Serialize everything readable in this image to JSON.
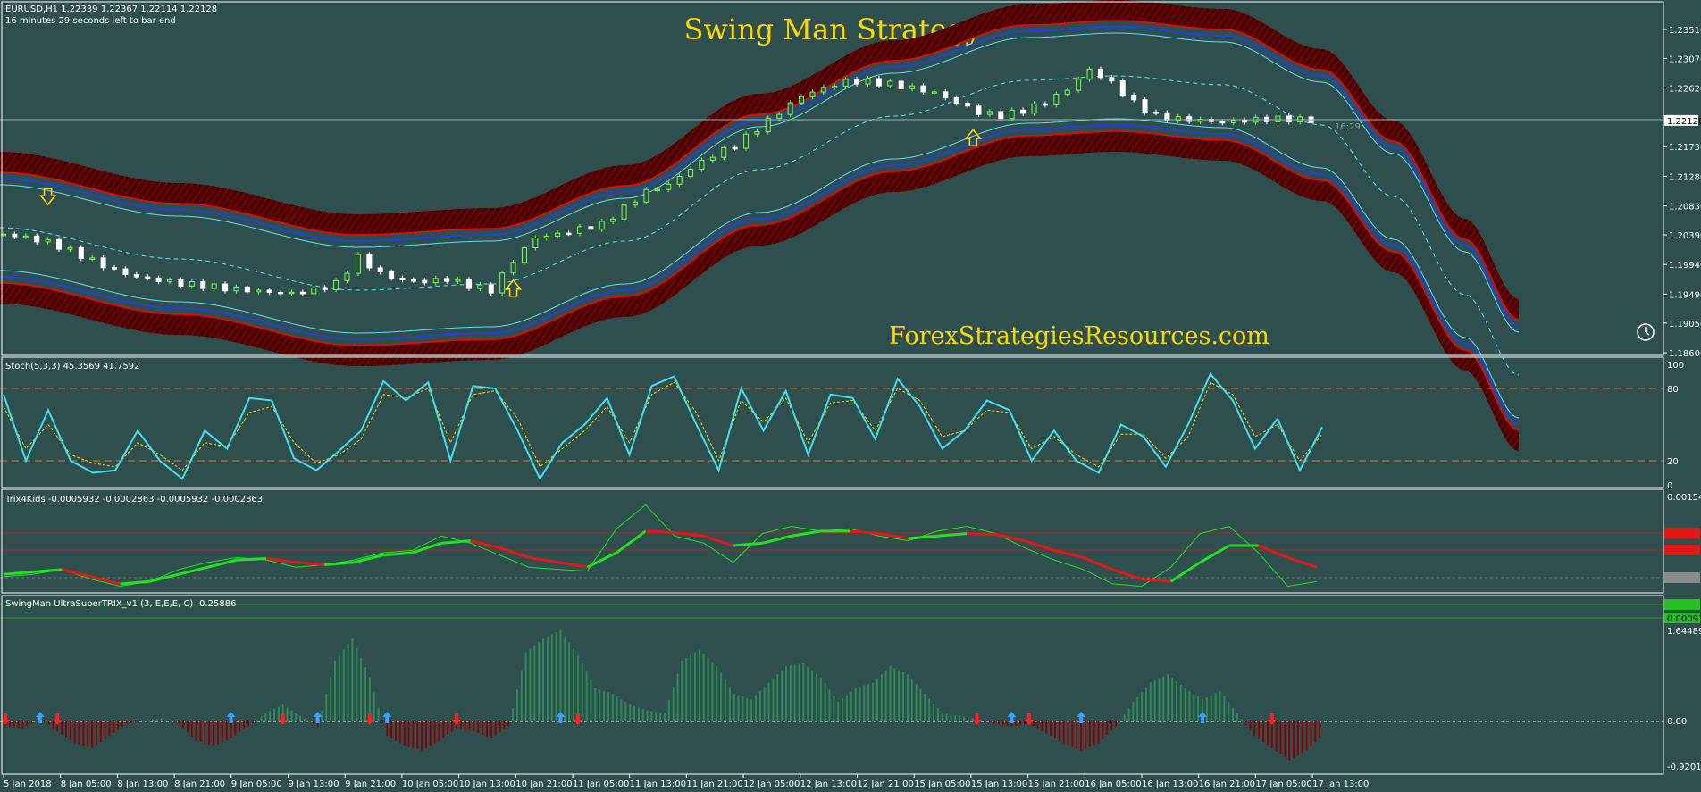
{
  "header": {
    "symbol_line": "EURUSD,H1  1.22339 1.22367 1.22114 1.22128",
    "timer_line": "16 minutes 29 seconds left to bar end",
    "title": "Swing Man Strategy",
    "watermark": "ForexStrategiesResources.com",
    "countdown": "16:29",
    "current_price": "1.22128"
  },
  "colors": {
    "background": "#2F4F4F",
    "band_outer": "#5A0000",
    "band_edge": "#FF0000",
    "band_blue": "#1E3CFF",
    "band_cyan": "#5CE1FF",
    "bull": "#7CFF4A",
    "bear": "#FFFFFF",
    "arrow": "#FFD700",
    "stoch_main": "#40E0F0",
    "stoch_signal": "#FFD700",
    "stoch_level": "#E87A2A",
    "trix_green": "#22E022",
    "trix_red": "#E01818",
    "hist_pos": "#2E8B57",
    "hist_neg": "#8B0000",
    "hist_arrow_up": "#3BA0FF",
    "hist_arrow_down": "#FF2020"
  },
  "chart_data": [
    {
      "type": "candlestick",
      "title": "EURUSD,H1",
      "y_ticks": [
        "1.23510",
        "1.23070",
        "1.22620",
        "1.22128",
        "1.21730",
        "1.21280",
        "1.20830",
        "1.20390",
        "1.19940",
        "1.19490",
        "1.19050",
        "1.18600"
      ],
      "ylim": [
        1.186,
        1.2351
      ],
      "current_price": 1.22128,
      "series": [
        {
          "name": "price",
          "x": [
            0,
            4,
            8,
            12,
            16,
            20,
            24,
            28,
            32,
            36,
            40,
            44,
            48,
            52,
            56,
            60,
            64,
            68,
            72,
            76,
            80,
            84,
            88,
            92,
            96,
            100,
            104,
            108,
            112,
            116,
            120,
            124,
            128,
            132,
            136,
            140,
            144,
            148,
            152,
            156,
            160,
            164,
            168,
            172,
            176,
            180,
            184,
            188,
            192,
            196,
            200,
            204,
            208,
            212,
            216,
            220,
            224,
            228,
            232,
            236,
            238
          ],
          "y": [
            1.204,
            1.2035,
            1.2028,
            1.2015,
            1.2,
            1.1985,
            1.1975,
            1.197,
            1.1965,
            1.1962,
            1.1958,
            1.1955,
            1.1952,
            1.195,
            1.1955,
            1.1965,
            1.2005,
            1.198,
            1.197,
            1.1968,
            1.1972,
            1.1962,
            1.1955,
            1.2,
            1.2035,
            1.204,
            1.2048,
            1.2055,
            1.208,
            1.2105,
            1.2115,
            1.214,
            1.216,
            1.2175,
            1.22,
            1.2225,
            1.225,
            1.2262,
            1.2272,
            1.2272,
            1.2268,
            1.2262,
            1.2255,
            1.224,
            1.2225,
            1.222,
            1.2228,
            1.224,
            1.226,
            1.229,
            1.227,
            1.224,
            1.222,
            1.2215,
            1.2213,
            1.221,
            1.2213,
            1.2215,
            1.2215,
            1.2213,
            1.2213
          ]
        }
      ],
      "arrows": [
        {
          "x": 8,
          "direction": "down"
        },
        {
          "x": 92,
          "direction": "up"
        },
        {
          "x": 175,
          "direction": "up"
        }
      ]
    },
    {
      "type": "line",
      "title": "Stoch(5,3,3) 45.3569 41.7592",
      "y_ticks": [
        "100",
        "80",
        "20",
        "0"
      ],
      "ylim": [
        0,
        100
      ],
      "levels": [
        80,
        20
      ],
      "series": [
        {
          "name": "main",
          "values": [
            75,
            20,
            62,
            20,
            10,
            12,
            45,
            20,
            5,
            45,
            30,
            72,
            70,
            22,
            12,
            28,
            45,
            86,
            70,
            85,
            20,
            82,
            80,
            45,
            5,
            35,
            50,
            72,
            25,
            82,
            90,
            50,
            12,
            80,
            45,
            78,
            25,
            75,
            72,
            38,
            88,
            65,
            30,
            45,
            70,
            62,
            20,
            45,
            20,
            10,
            50,
            40,
            15,
            50,
            92,
            70,
            30,
            55,
            12,
            48
          ]
        },
        {
          "name": "signal",
          "values": [
            65,
            30,
            50,
            25,
            18,
            15,
            35,
            25,
            12,
            35,
            32,
            60,
            65,
            35,
            18,
            25,
            38,
            75,
            72,
            80,
            35,
            75,
            78,
            55,
            15,
            30,
            45,
            65,
            35,
            75,
            85,
            60,
            20,
            70,
            52,
            72,
            35,
            68,
            70,
            45,
            80,
            70,
            40,
            45,
            62,
            60,
            30,
            40,
            25,
            15,
            42,
            42,
            22,
            40,
            85,
            75,
            40,
            50,
            20,
            42
          ]
        }
      ]
    },
    {
      "type": "line",
      "title": "Trix4Kids -0.0005932 -0.0002863 -0.0005932 -0.0002863",
      "y_ticks": [
        "0.001546",
        "0.000911"
      ],
      "series": [
        {
          "name": "trix",
          "values": [
            -0.1,
            -0.05,
            0.05,
            -0.15,
            -0.3,
            -0.2,
            0.05,
            0.2,
            0.3,
            0.25,
            0.1,
            0.15,
            0.25,
            0.4,
            0.45,
            0.75,
            0.6,
            0.35,
            0.1,
            0.05,
            0.02,
            0.9,
            1.4,
            0.75,
            0.6,
            0.2,
            0.8,
            0.95,
            0.85,
            0.9,
            0.75,
            0.65,
            0.85,
            0.95,
            0.8,
            0.5,
            0.25,
            0.05,
            -0.25,
            -0.3,
            0.1,
            0.8,
            0.95,
            0.4,
            -0.3,
            -0.2
          ]
        },
        {
          "name": "signal",
          "values": [
            -0.05,
            0.0,
            0.05,
            -0.1,
            -0.25,
            -0.2,
            -0.05,
            0.1,
            0.25,
            0.28,
            0.2,
            0.15,
            0.2,
            0.35,
            0.4,
            0.6,
            0.65,
            0.5,
            0.3,
            0.2,
            0.1,
            0.4,
            0.85,
            0.82,
            0.75,
            0.55,
            0.6,
            0.75,
            0.85,
            0.85,
            0.8,
            0.7,
            0.75,
            0.8,
            0.78,
            0.65,
            0.45,
            0.3,
            0.05,
            -0.15,
            -0.2,
            0.2,
            0.55,
            0.55,
            0.3,
            0.1
          ]
        }
      ]
    },
    {
      "type": "bar",
      "title": "SwingMan UltraSuperTRIX_v1 (3, E,E,E, C) -0.25886",
      "y_ticks": [
        "1.64489",
        "0.00",
        "-0.92016"
      ],
      "ylim": [
        -0.92016,
        1.64489
      ],
      "values": [
        -0.1,
        -0.15,
        0.05,
        -0.2,
        -0.45,
        -0.55,
        -0.3,
        -0.05,
        0.02,
        0.05,
        -0.05,
        -0.4,
        -0.5,
        -0.35,
        -0.1,
        0.15,
        0.3,
        0.1,
        -0.1,
        1.1,
        1.5,
        0.8,
        -0.3,
        -0.5,
        -0.6,
        -0.4,
        -0.15,
        -0.2,
        -0.35,
        -0.1,
        1.25,
        1.5,
        1.65,
        1.2,
        0.6,
        0.5,
        0.3,
        0.2,
        0.15,
        1.1,
        1.3,
        1.0,
        0.5,
        0.4,
        0.7,
        1.0,
        1.05,
        0.8,
        0.35,
        0.6,
        0.7,
        1.0,
        0.85,
        0.5,
        0.15,
        0.1,
        0.05,
        -0.05,
        -0.1,
        -0.05,
        -0.25,
        -0.45,
        -0.6,
        -0.45,
        -0.1,
        0.35,
        0.7,
        0.85,
        0.6,
        0.4,
        0.55,
        0.15,
        -0.3,
        -0.55,
        -0.8,
        -0.6,
        -0.25
      ],
      "arrows": [
        {
          "index": 0,
          "direction": "down"
        },
        {
          "index": 2,
          "direction": "up"
        },
        {
          "index": 3,
          "direction": "down"
        },
        {
          "index": 13,
          "direction": "up"
        },
        {
          "index": 16,
          "direction": "down"
        },
        {
          "index": 18,
          "direction": "up"
        },
        {
          "index": 21,
          "direction": "down"
        },
        {
          "index": 22,
          "direction": "up"
        },
        {
          "index": 26,
          "direction": "down"
        },
        {
          "index": 32,
          "direction": "up"
        },
        {
          "index": 33,
          "direction": "down"
        },
        {
          "index": 56,
          "direction": "down"
        },
        {
          "index": 58,
          "direction": "up"
        },
        {
          "index": 59,
          "direction": "down"
        },
        {
          "index": 62,
          "direction": "up"
        },
        {
          "index": 69,
          "direction": "up"
        },
        {
          "index": 73,
          "direction": "down"
        }
      ]
    }
  ],
  "x_axis": {
    "tick_labels": [
      "5 Jan 2018",
      "8 Jan 05:00",
      "8 Jan 13:00",
      "8 Jan 21:00",
      "9 Jan 05:00",
      "9 Jan 13:00",
      "9 Jan 21:00",
      "10 Jan 05:00",
      "10 Jan 13:00",
      "10 Jan 21:00",
      "11 Jan 05:00",
      "11 Jan 13:00",
      "11 Jan 21:00",
      "12 Jan 05:00",
      "12 Jan 13:00",
      "12 Jan 21:00",
      "15 Jan 05:00",
      "15 Jan 13:00",
      "15 Jan 21:00",
      "16 Jan 05:00",
      "16 Jan 13:00",
      "16 Jan 21:00",
      "17 Jan 05:00",
      "17 Jan 13:00"
    ]
  }
}
